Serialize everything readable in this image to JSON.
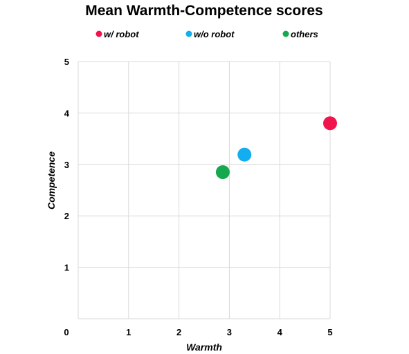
{
  "chart_data": {
    "type": "scatter",
    "title": "Mean Warmth-Competence scores",
    "xlabel": "Warmth",
    "ylabel": "Competence",
    "xlim": [
      0,
      5
    ],
    "ylim": [
      0,
      5
    ],
    "x_ticks": [
      "0",
      "1",
      "2",
      "3",
      "4",
      "5"
    ],
    "y_ticks": [
      "1",
      "2",
      "3",
      "4",
      "5"
    ],
    "grid": true,
    "legend_position": "top",
    "series": [
      {
        "name": "w/ robot",
        "color": "#f0134d",
        "points": [
          {
            "x": 5.0,
            "y": 3.8
          }
        ]
      },
      {
        "name": "w/o robot",
        "color": "#12aeef",
        "points": [
          {
            "x": 3.3,
            "y": 3.19
          }
        ]
      },
      {
        "name": "others",
        "color": "#14a84f",
        "points": [
          {
            "x": 2.87,
            "y": 2.85
          }
        ]
      }
    ]
  }
}
